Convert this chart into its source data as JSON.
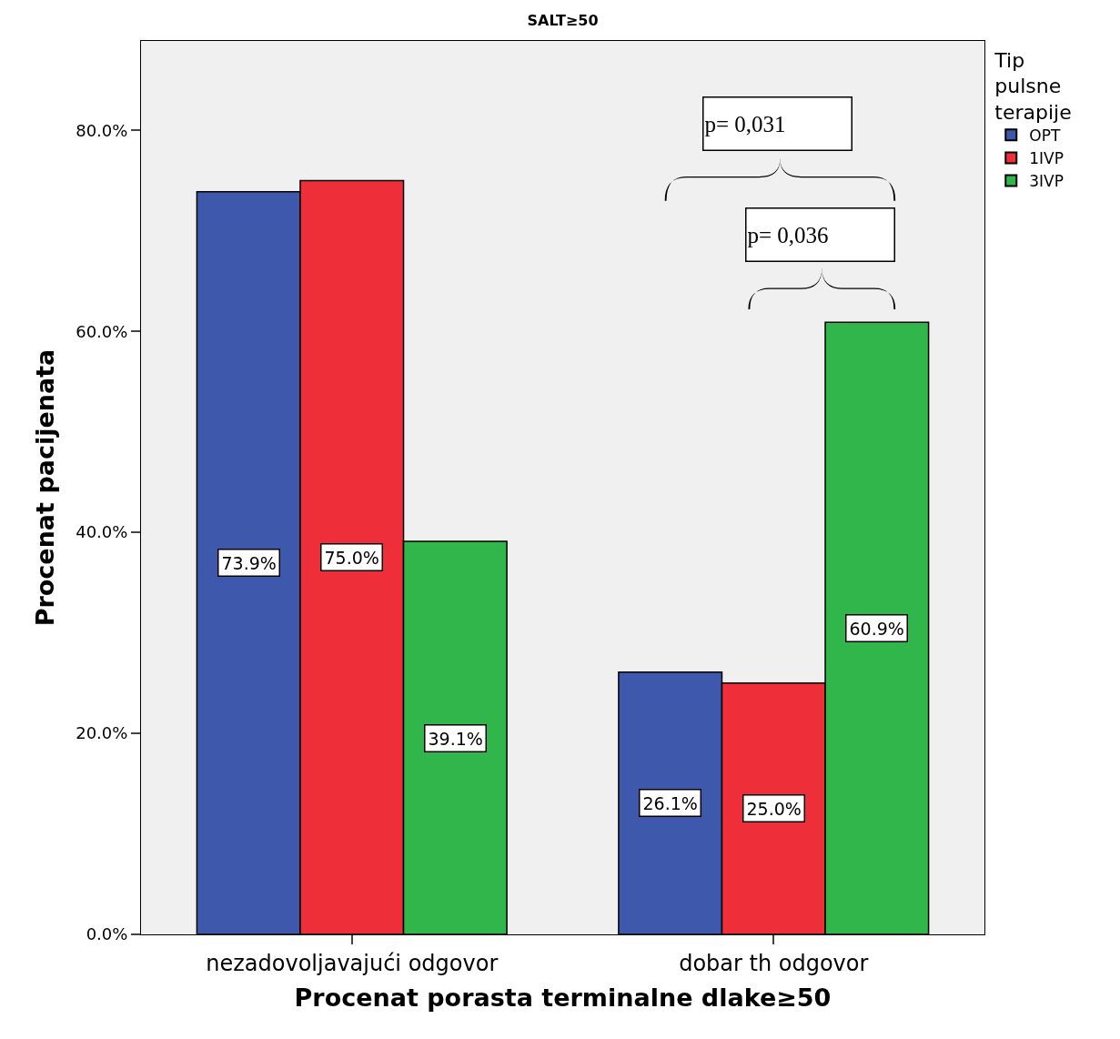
{
  "chart_data": {
    "type": "bar",
    "title": "SALT≥50",
    "xlabel": "Procenat porasta terminalne dlake≥50",
    "ylabel": "Procenat pacijenata",
    "legend_title": "Tip pulsne terapije",
    "categories": [
      "nezadovoljavajući odgovor",
      "dobar th odgovor"
    ],
    "series": [
      {
        "name": "OPT",
        "color": "#3e58ac",
        "values": [
          73.9,
          26.1
        ],
        "value_labels": [
          "73.9%",
          "26.1%"
        ]
      },
      {
        "name": "1IVP",
        "color": "#ee2e38",
        "values": [
          75.0,
          25.0
        ],
        "value_labels": [
          "75.0%",
          "25.0%"
        ]
      },
      {
        "name": "3IVP",
        "color": "#30b64a",
        "values": [
          39.1,
          60.9
        ],
        "value_labels": [
          "39.1%",
          "60.9%"
        ]
      }
    ],
    "ylim": [
      0,
      88.9
    ],
    "yticks": [
      {
        "value": 0,
        "label": "0.0%"
      },
      {
        "value": 20,
        "label": "20.0%"
      },
      {
        "value": 40,
        "label": "40.0%"
      },
      {
        "value": 60,
        "label": "60.0%"
      },
      {
        "value": 80,
        "label": "80.0%"
      }
    ],
    "annotations": [
      "p= 0,031",
      "p= 0,036"
    ],
    "grid": false,
    "legend": "top right"
  }
}
